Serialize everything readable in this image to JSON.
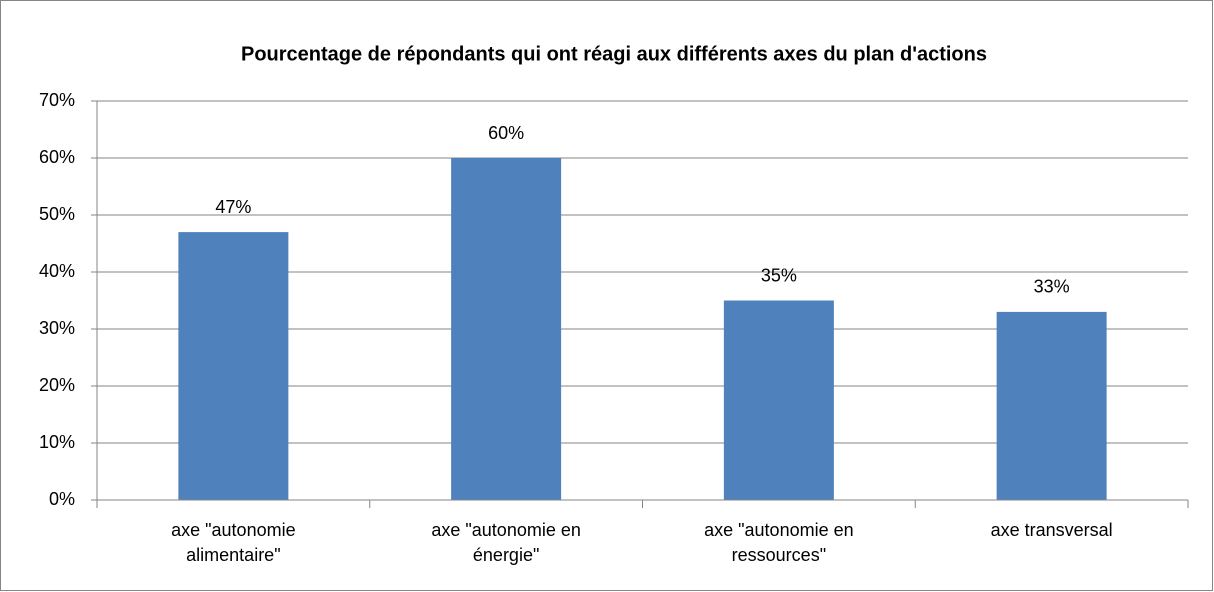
{
  "chart_data": {
    "type": "bar",
    "title": "Pourcentage de répondants qui ont réagi aux différents axes du plan d'actions",
    "categories": [
      "axe \"autonomie alimentaire\"",
      "axe \"autonomie en énergie\"",
      "axe \"autonomie en ressources\"",
      "axe transversal"
    ],
    "values": [
      47,
      60,
      35,
      33
    ],
    "value_labels": [
      "47%",
      "60%",
      "35%",
      "33%"
    ],
    "color": "#4f81bd",
    "ylim": [
      0,
      70
    ],
    "yticks": [
      {
        "value": 0,
        "label": "0%"
      },
      {
        "value": 10,
        "label": "10%"
      },
      {
        "value": 20,
        "label": "20%"
      },
      {
        "value": 30,
        "label": "30%"
      },
      {
        "value": 40,
        "label": "40%"
      },
      {
        "value": 50,
        "label": "50%"
      },
      {
        "value": 60,
        "label": "60%"
      },
      {
        "value": 70,
        "label": "70%"
      }
    ],
    "grid": true
  }
}
